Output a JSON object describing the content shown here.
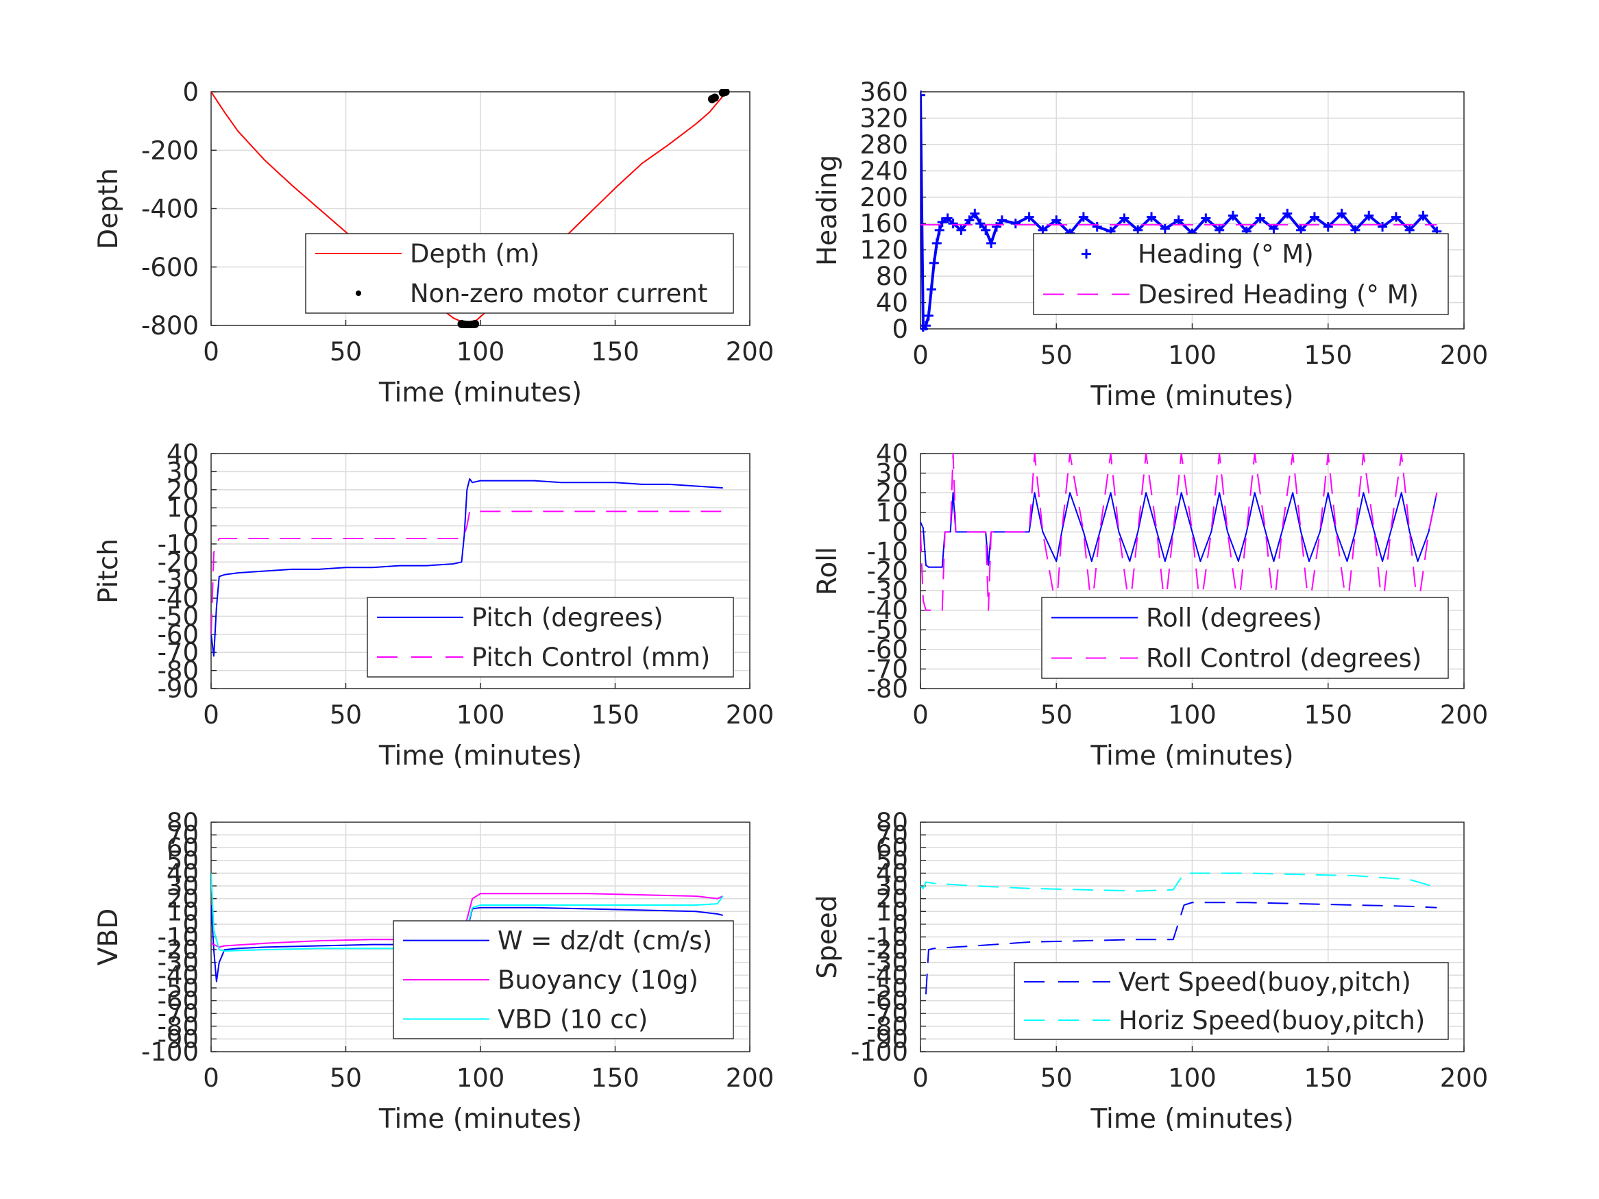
{
  "chart_data": [
    {
      "type": "line",
      "xlabel": "Time (minutes)",
      "ylabel": "Depth",
      "xlim": [
        0,
        200
      ],
      "ylim": [
        -800,
        0
      ],
      "xticks": [
        0,
        50,
        100,
        150,
        200
      ],
      "yticks": [
        -800,
        -600,
        -400,
        -200,
        0
      ],
      "grid": true,
      "legend_position": "lower-right",
      "series": [
        {
          "name": "Depth (m)",
          "color": "#ff0000",
          "style": "solid",
          "x": [
            0,
            5,
            10,
            20,
            30,
            40,
            50,
            60,
            70,
            80,
            90,
            95,
            97,
            100,
            110,
            120,
            130,
            140,
            150,
            160,
            170,
            180,
            185,
            190,
            191
          ],
          "y": [
            0,
            -70,
            -135,
            -235,
            -320,
            -400,
            -480,
            -560,
            -635,
            -705,
            -775,
            -795,
            -795,
            -770,
            -690,
            -600,
            -510,
            -420,
            -330,
            -245,
            -180,
            -110,
            -70,
            -15,
            0
          ]
        },
        {
          "name": "Non-zero motor current",
          "color": "#000000",
          "style": "dot",
          "x": [
            93,
            94,
            95,
            96,
            97,
            98,
            186,
            187,
            190,
            191
          ],
          "y": [
            -795,
            -797,
            -798,
            -798,
            -797,
            -795,
            -25,
            -20,
            -3,
            0
          ]
        }
      ]
    },
    {
      "type": "line",
      "xlabel": "Time (minutes)",
      "ylabel": "Heading",
      "xlim": [
        0,
        200
      ],
      "ylim": [
        0,
        360
      ],
      "xticks": [
        0,
        50,
        100,
        150,
        200
      ],
      "yticks": [
        0,
        40,
        80,
        120,
        160,
        200,
        240,
        280,
        320,
        360
      ],
      "grid": true,
      "legend_position": "lower-right",
      "series": [
        {
          "name": "Heading (° M)",
          "color": "#0000ff",
          "style": "plus",
          "x": [
            0,
            1,
            2,
            3,
            4,
            5,
            6,
            7,
            8,
            10,
            12,
            15,
            18,
            20,
            22,
            24,
            26,
            28,
            30,
            35,
            40,
            45,
            50,
            55,
            60,
            65,
            70,
            75,
            80,
            85,
            90,
            95,
            100,
            105,
            110,
            115,
            120,
            125,
            130,
            135,
            140,
            145,
            150,
            155,
            160,
            165,
            170,
            175,
            180,
            185,
            190
          ],
          "y": [
            355,
            0,
            5,
            20,
            60,
            100,
            130,
            150,
            162,
            168,
            160,
            150,
            165,
            175,
            160,
            150,
            130,
            155,
            165,
            160,
            170,
            150,
            165,
            145,
            170,
            155,
            148,
            168,
            150,
            170,
            152,
            165,
            145,
            168,
            150,
            172,
            148,
            168,
            152,
            175,
            150,
            170,
            155,
            175,
            150,
            172,
            155,
            170,
            150,
            172,
            148
          ]
        },
        {
          "name": "Desired Heading (° M)",
          "color": "#ff00ff",
          "style": "dash",
          "x": [
            0,
            190
          ],
          "y": [
            158,
            158
          ]
        }
      ]
    },
    {
      "type": "line",
      "xlabel": "Time (minutes)",
      "ylabel": "Pitch",
      "xlim": [
        0,
        200
      ],
      "ylim": [
        -90,
        40
      ],
      "xticks": [
        0,
        50,
        100,
        150,
        200
      ],
      "yticks": [
        -90,
        -80,
        -70,
        -60,
        -50,
        -40,
        -30,
        -20,
        -10,
        0,
        10,
        20,
        30,
        40
      ],
      "grid": true,
      "legend_position": "lower-right",
      "series": [
        {
          "name": "Pitch (degrees)",
          "color": "#0000ff",
          "style": "solid",
          "x": [
            0,
            1,
            2,
            3,
            5,
            10,
            20,
            30,
            40,
            50,
            60,
            70,
            80,
            90,
            93,
            94,
            95,
            96,
            97,
            100,
            110,
            120,
            130,
            140,
            150,
            160,
            170,
            180,
            190
          ],
          "y": [
            -60,
            -72,
            -45,
            -28,
            -27,
            -26,
            -25,
            -24,
            -24,
            -23,
            -23,
            -22,
            -22,
            -21,
            -20,
            -5,
            20,
            26,
            24,
            25,
            25,
            25,
            24,
            24,
            24,
            23,
            23,
            22,
            21
          ]
        },
        {
          "name": "Pitch Control (mm)",
          "color": "#ff00ff",
          "style": "dash",
          "x": [
            0,
            1,
            2,
            3,
            93,
            94,
            95,
            96,
            190
          ],
          "y": [
            -60,
            -15,
            -10,
            -7,
            -7,
            -5,
            0,
            8,
            8
          ]
        }
      ]
    },
    {
      "type": "line",
      "xlabel": "Time (minutes)",
      "ylabel": "Roll",
      "xlim": [
        0,
        200
      ],
      "ylim": [
        -80,
        40
      ],
      "xticks": [
        0,
        50,
        100,
        150,
        200
      ],
      "yticks": [
        -80,
        -70,
        -60,
        -50,
        -40,
        -30,
        -20,
        -10,
        0,
        10,
        20,
        30,
        40
      ],
      "grid": true,
      "legend_position": "lower-right",
      "series": [
        {
          "name": "Roll (degrees)",
          "color": "#0000ff",
          "style": "solid",
          "x": [
            0,
            1,
            2,
            3,
            8,
            9,
            11,
            12,
            13,
            20,
            24,
            25,
            26,
            35,
            40,
            42,
            45,
            50,
            52,
            55,
            60,
            63,
            66,
            70,
            73,
            77,
            80,
            83,
            87,
            90,
            93,
            96,
            100,
            103,
            107,
            110,
            113,
            117,
            120,
            123,
            127,
            130,
            133,
            137,
            140,
            143,
            147,
            150,
            153,
            157,
            160,
            163,
            167,
            170,
            173,
            177,
            180,
            183,
            187,
            190
          ],
          "y": [
            5,
            2,
            -17,
            -18,
            -18,
            0,
            0,
            20,
            0,
            0,
            0,
            -17,
            0,
            0,
            0,
            20,
            0,
            -15,
            0,
            20,
            0,
            -15,
            0,
            20,
            0,
            -15,
            0,
            20,
            0,
            -15,
            0,
            20,
            0,
            -15,
            0,
            20,
            0,
            -15,
            0,
            20,
            0,
            -15,
            0,
            20,
            0,
            -15,
            0,
            20,
            0,
            -15,
            0,
            20,
            0,
            -15,
            0,
            20,
            0,
            -15,
            0,
            20
          ]
        },
        {
          "name": "Roll Control (degrees)",
          "color": "#ff00ff",
          "style": "dash",
          "x": [
            0,
            1,
            2,
            4,
            8,
            9,
            11,
            12,
            13,
            20,
            24,
            25,
            26,
            35,
            40,
            42,
            45,
            50,
            52,
            55,
            60,
            63,
            66,
            70,
            73,
            77,
            80,
            83,
            87,
            90,
            93,
            96,
            100,
            103,
            107,
            110,
            113,
            117,
            120,
            123,
            127,
            130,
            133,
            137,
            140,
            143,
            147,
            150,
            153,
            157,
            160,
            163,
            167,
            170,
            173,
            177,
            180,
            183,
            187,
            190
          ],
          "y": [
            0,
            -35,
            -40,
            -40,
            -40,
            0,
            0,
            40,
            0,
            0,
            0,
            -40,
            0,
            0,
            0,
            40,
            0,
            -40,
            0,
            40,
            0,
            -40,
            0,
            40,
            0,
            -40,
            0,
            40,
            0,
            -40,
            0,
            40,
            0,
            -40,
            0,
            40,
            0,
            -40,
            0,
            40,
            0,
            -40,
            0,
            40,
            0,
            -40,
            0,
            40,
            0,
            -40,
            0,
            40,
            0,
            -40,
            0,
            40,
            0,
            -40,
            0,
            20
          ]
        }
      ]
    },
    {
      "type": "line",
      "xlabel": "Time (minutes)",
      "ylabel": "VBD",
      "xlim": [
        0,
        200
      ],
      "ylim": [
        -100,
        80
      ],
      "xticks": [
        0,
        50,
        100,
        150,
        200
      ],
      "yticks": [
        -100,
        -90,
        -80,
        -70,
        -60,
        -50,
        -40,
        -30,
        -20,
        -10,
        0,
        10,
        20,
        30,
        40,
        50,
        60,
        70,
        80
      ],
      "grid": true,
      "legend_position": "lower-right",
      "series": [
        {
          "name": "W = dz/dt (cm/s)",
          "color": "#0000ff",
          "style": "solid",
          "x": [
            0,
            1,
            2,
            3,
            5,
            10,
            20,
            40,
            60,
            80,
            93,
            95,
            97,
            100,
            120,
            140,
            160,
            180,
            188,
            190
          ],
          "y": [
            15,
            -20,
            -45,
            -30,
            -20,
            -19,
            -18,
            -17,
            -16,
            -16,
            -15,
            -5,
            12,
            13,
            13,
            12,
            11,
            10,
            8,
            7
          ]
        },
        {
          "name": "Buoyancy (10g)",
          "color": "#ff00ff",
          "style": "solid",
          "x": [
            0,
            3,
            5,
            20,
            40,
            60,
            80,
            93,
            97,
            100,
            120,
            140,
            160,
            180,
            188,
            190
          ],
          "y": [
            -15,
            -18,
            -17,
            -15,
            -13,
            -12,
            -12,
            -12,
            20,
            24,
            24,
            24,
            23,
            22,
            20,
            22
          ]
        },
        {
          "name": "VBD (10 cc)",
          "color": "#00ffff",
          "style": "solid",
          "x": [
            0,
            1,
            3,
            5,
            20,
            40,
            60,
            80,
            93,
            97,
            100,
            120,
            140,
            160,
            180,
            188,
            190
          ],
          "y": [
            40,
            -5,
            -20,
            -21,
            -20,
            -19,
            -19,
            -19,
            -19,
            13,
            15,
            15,
            15,
            15,
            15,
            16,
            22
          ]
        }
      ]
    },
    {
      "type": "line",
      "xlabel": "",
      "ylabel": "Speed",
      "xlim": [
        0,
        200
      ],
      "ylim": [
        -100,
        80
      ],
      "xticks": [
        0,
        50,
        100,
        150,
        200
      ],
      "yticks": [
        -100,
        -90,
        -80,
        -70,
        -60,
        -50,
        -40,
        -30,
        -20,
        -10,
        0,
        10,
        20,
        30,
        40,
        50,
        60,
        70,
        80
      ],
      "grid": true,
      "legend_position": "lower-right",
      "series": [
        {
          "name": "Vert Speed(buoy,pitch)",
          "color": "#0000ff",
          "style": "dash",
          "x": [
            2,
            3,
            5,
            20,
            40,
            60,
            80,
            93,
            97,
            100,
            120,
            140,
            160,
            180,
            190
          ],
          "y": [
            -55,
            -20,
            -19,
            -17,
            -14,
            -13,
            -12,
            -12,
            15,
            17,
            17,
            16,
            15,
            14,
            13
          ]
        },
        {
          "name": "Horiz Speed(buoy,pitch)",
          "color": "#00ffff",
          "style": "dash",
          "x": [
            0,
            1,
            2,
            5,
            20,
            40,
            60,
            80,
            93,
            97,
            100,
            120,
            140,
            160,
            180,
            188,
            190
          ],
          "y": [
            30,
            28,
            33,
            32,
            30,
            28,
            27,
            26,
            27,
            40,
            40,
            40,
            39,
            38,
            35,
            30,
            35
          ]
        }
      ]
    }
  ],
  "bottom_right_xlabel": "Time (minutes)"
}
